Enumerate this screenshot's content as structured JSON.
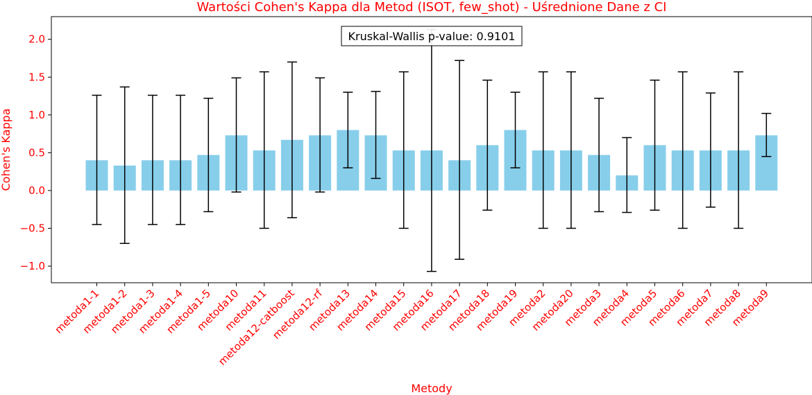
{
  "chart_data": {
    "type": "bar",
    "title": "Wartości Cohen's Kappa dla Metod (ISOT, few_shot) - Uśrednione Dane z CI",
    "xlabel": "Metody",
    "ylabel": "Cohen's Kappa",
    "ylim": [
      -1.22,
      2.3
    ],
    "yticks": [
      -1.0,
      -0.5,
      0.0,
      0.5,
      1.0,
      1.5,
      2.0
    ],
    "ytick_labels": [
      "−1.0",
      "−0.5",
      "0.0",
      "0.5",
      "1.0",
      "1.5",
      "2.0"
    ],
    "categories": [
      "metoda1-1",
      "metoda1-2",
      "metoda1-3",
      "metoda1-4",
      "metoda1-5",
      "metoda10",
      "metoda11",
      "metoda12-catboost",
      "metoda12-rf",
      "metoda13",
      "metoda14",
      "metoda15",
      "metoda16",
      "metoda17",
      "metoda18",
      "metoda19",
      "metoda2",
      "metoda20",
      "metoda3",
      "metoda4",
      "metoda5",
      "metoda6",
      "metoda7",
      "metoda8",
      "metoda9"
    ],
    "values": [
      0.4,
      0.33,
      0.4,
      0.4,
      0.47,
      0.73,
      0.53,
      0.67,
      0.73,
      0.8,
      0.73,
      0.53,
      0.53,
      0.4,
      0.6,
      0.8,
      0.53,
      0.53,
      0.47,
      0.2,
      0.6,
      0.53,
      0.53,
      0.53,
      0.73
    ],
    "ci_lower": [
      -0.45,
      -0.7,
      -0.45,
      -0.45,
      -0.28,
      -0.02,
      -0.5,
      -0.36,
      -0.02,
      0.3,
      0.16,
      -0.5,
      -1.07,
      -0.91,
      -0.26,
      0.3,
      -0.5,
      -0.5,
      -0.28,
      -0.29,
      -0.26,
      -0.5,
      -0.22,
      -0.5,
      0.45
    ],
    "ci_upper": [
      1.26,
      1.37,
      1.26,
      1.26,
      1.22,
      1.49,
      1.57,
      1.7,
      1.49,
      1.3,
      1.31,
      1.57,
      2.13,
      1.72,
      1.46,
      1.3,
      1.57,
      1.57,
      1.22,
      0.7,
      1.46,
      1.57,
      1.29,
      1.57,
      1.02
    ],
    "annotation": "Kruskal-Wallis p-value: 0.9101",
    "grid": false,
    "colors": {
      "bar": "#87ceeb",
      "error": "#000000",
      "text": "#ff0000"
    }
  }
}
